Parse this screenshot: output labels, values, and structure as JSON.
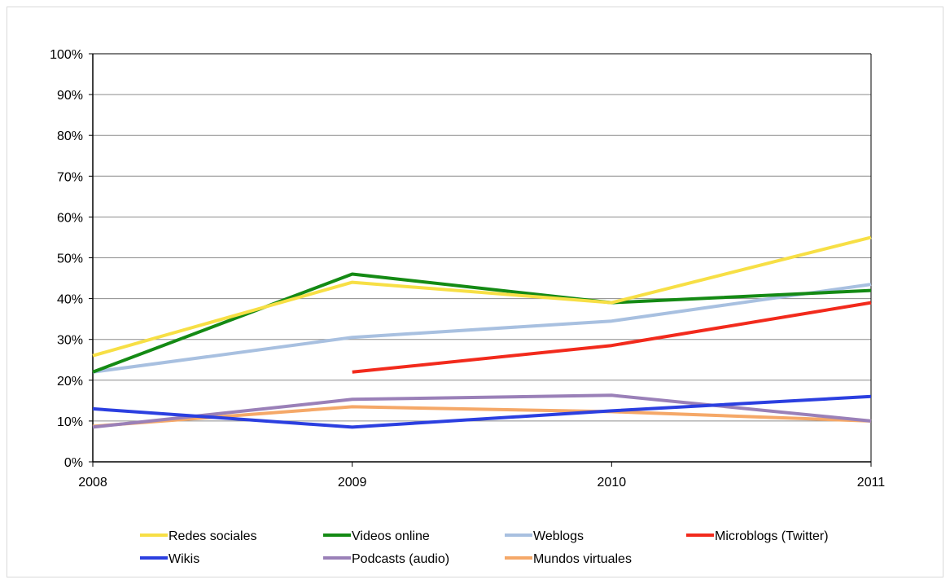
{
  "chart_data": {
    "type": "line",
    "title": "",
    "xlabel": "",
    "ylabel": "",
    "x": [
      "2008",
      "2009",
      "2010",
      "2011"
    ],
    "ylim": [
      0,
      100
    ],
    "y_ticks": [
      "0%",
      "10%",
      "20%",
      "30%",
      "40%",
      "50%",
      "60%",
      "70%",
      "80%",
      "90%",
      "100%"
    ],
    "grid": true,
    "legend_position": "bottom",
    "series": [
      {
        "name": "Redes sociales",
        "color": "#f7df45",
        "values": [
          26,
          44,
          39,
          55
        ]
      },
      {
        "name": "Videos online",
        "color": "#148a14",
        "values": [
          22,
          46,
          39,
          42
        ]
      },
      {
        "name": "Weblogs",
        "color": "#a8c0e0",
        "values": [
          22,
          30.5,
          34.5,
          43.5
        ]
      },
      {
        "name": "Microblogs (Twitter)",
        "color": "#f22a1c",
        "values": [
          null,
          22,
          28.5,
          39
        ]
      },
      {
        "name": "Wikis",
        "color": "#2b3fe0",
        "values": [
          13,
          8.5,
          12.5,
          16
        ]
      },
      {
        "name": "Podcasts (audio)",
        "color": "#9a80b8",
        "values": [
          8.5,
          15.3,
          16.3,
          10
        ]
      },
      {
        "name": "Mundos virtuales",
        "color": "#f5a868",
        "values": [
          8.7,
          13.5,
          12.3,
          10
        ]
      }
    ]
  }
}
